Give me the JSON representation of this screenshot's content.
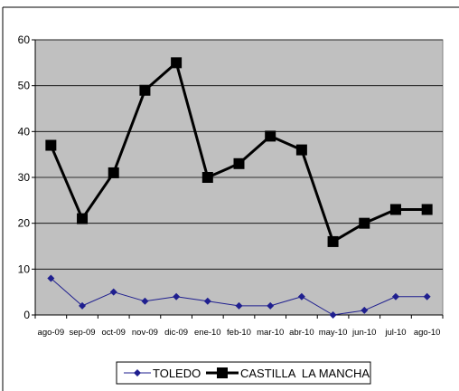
{
  "chart_data": {
    "type": "line",
    "categories": [
      "ago-09",
      "sep-09",
      "oct-09",
      "nov-09",
      "dic-09",
      "ene-10",
      "feb-10",
      "mar-10",
      "abr-10",
      "may-10",
      "jun-10",
      "jul-10",
      "ago-10"
    ],
    "series": [
      {
        "name": "TOLEDO",
        "values": [
          8,
          2,
          5,
          3,
          4,
          3,
          2,
          2,
          4,
          0,
          1,
          4,
          4
        ],
        "color": "#1f1f8f",
        "marker": "diamond"
      },
      {
        "name": "CASTILLA  LA MANCHA",
        "values": [
          37,
          21,
          31,
          49,
          55,
          30,
          33,
          39,
          36,
          16,
          20,
          23,
          23
        ],
        "color": "#000000",
        "marker": "square"
      }
    ],
    "yticks": [
      "0",
      "10",
      "20",
      "30",
      "40",
      "50",
      "60"
    ],
    "ylim": [
      0,
      60
    ],
    "grid": true,
    "legend_position": "bottom",
    "plot_background": "#c0c0c0"
  }
}
